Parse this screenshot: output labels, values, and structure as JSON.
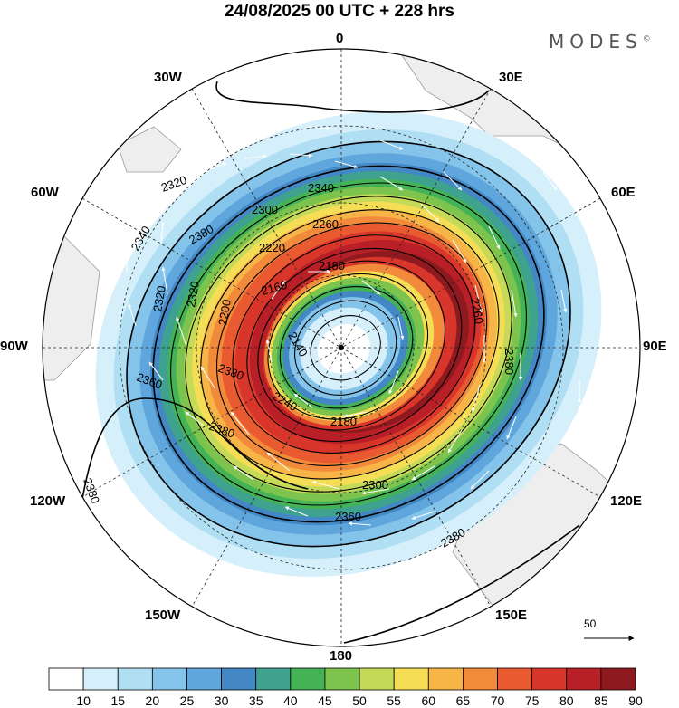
{
  "title": "24/08/2025  00 UTC  + 228 hrs",
  "logo": "MODES",
  "logo_mark": "©",
  "longitude_labels": [
    "0",
    "30E",
    "60E",
    "90E",
    "120E",
    "150E",
    "180",
    "150W",
    "120W",
    "90W",
    "60W",
    "30W"
  ],
  "contour_labels": [
    "2140",
    "2160",
    "2180",
    "2200",
    "2220",
    "2240",
    "2260",
    "2280",
    "2300",
    "2320",
    "2340",
    "2360",
    "2380"
  ],
  "contour_label_instances": [
    "2320",
    "2340",
    "2300",
    "2260",
    "2380",
    "2220",
    "2180",
    "2160",
    "2200",
    "2320",
    "2320",
    "2340",
    "2140",
    "2260",
    "2380",
    "2360",
    "2380",
    "2240",
    "2180",
    "2300",
    "2360",
    "2380",
    "2380",
    "2380"
  ],
  "wind_reference": "50",
  "colorbar": {
    "labels": [
      "10",
      "15",
      "20",
      "25",
      "30",
      "35",
      "40",
      "45",
      "50",
      "55",
      "60",
      "65",
      "70",
      "75",
      "80",
      "85",
      "90"
    ],
    "colors": [
      "#ffffff",
      "#d6f0fb",
      "#b0dff4",
      "#85c4ea",
      "#5ea6dc",
      "#4387c4",
      "#3fa28e",
      "#43b356",
      "#7cc44e",
      "#c5db57",
      "#f5dd56",
      "#f7b548",
      "#f28a3c",
      "#e95a31",
      "#d8362b",
      "#b81f26",
      "#8e1a1f"
    ]
  },
  "colors": {
    "land": "#eeeeee",
    "contour": "#000000",
    "wind_arrow": "#ffffff"
  }
}
